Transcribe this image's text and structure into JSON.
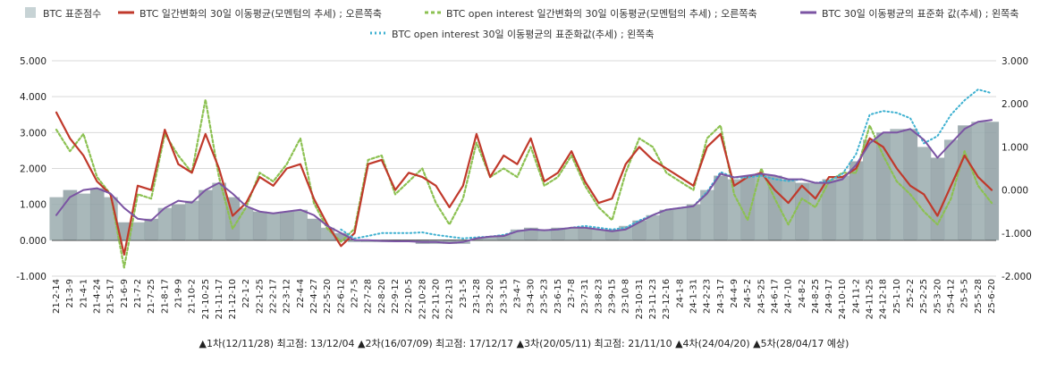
{
  "chart_data": {
    "type": "area+line",
    "legend": [
      {
        "key": "score",
        "label": "BTC 표준점수",
        "color": "#c7d3d5",
        "style": "area"
      },
      {
        "key": "chg30",
        "label": "BTC 일간변화의 30일 이동평균(모멘텀의 추세) ; 오른쪽축",
        "color": "#c0392b",
        "style": "line"
      },
      {
        "key": "oi_chg30",
        "label": "BTC open interest 일간변화의 30일 이동평균(모멘텀의 추세) ; 오른쪽축",
        "color": "#8cc152",
        "style": "dash"
      },
      {
        "key": "std30",
        "label": "BTC 30일 이동평균의 표준화 값(추세) ; 왼쪽축",
        "color": "#7b54a3",
        "style": "line"
      },
      {
        "key": "oi_std30",
        "label": "BTC open interest 30일 이동평균의 표준화값(추세) ; 왼쪽축",
        "color": "#3fb1d1",
        "style": "dot"
      }
    ],
    "y_left": {
      "min": -1,
      "max": 5,
      "ticks": [
        "-1.000",
        "0.000",
        "1.000",
        "2.000",
        "3.000",
        "4.000",
        "5.000"
      ]
    },
    "y_right": {
      "min": -2,
      "max": 3,
      "ticks": [
        "-2.000",
        "-1.000",
        "0.000",
        "1.000",
        "2.000",
        "3.000"
      ]
    },
    "x_labels": [
      "21-2-14",
      "21-3-9",
      "21-4-1",
      "21-4-24",
      "21-5-17",
      "21-6-9",
      "21-7-2",
      "21-7-25",
      "21-8-17",
      "21-9-9",
      "21-10-2",
      "21-10-25",
      "21-11-17",
      "21-12-10",
      "22-1-2",
      "22-1-25",
      "22-2-17",
      "22-3-12",
      "22-4-4",
      "22-4-27",
      "22-5-20",
      "22-6-12",
      "22-7-5",
      "22-7-28",
      "22-8-20",
      "22-9-12",
      "22-10-5",
      "22-10-28",
      "22-11-20",
      "22-12-13",
      "23-1-5",
      "23-1-28",
      "23-2-20",
      "23-3-15",
      "23-4-7",
      "23-4-30",
      "23-5-23",
      "23-6-15",
      "23-7-8",
      "23-7-31",
      "23-8-23",
      "23-9-15",
      "23-10-8",
      "23-10-31",
      "23-11-23",
      "23-12-16",
      "24-1-8",
      "24-1-31",
      "24-2-23",
      "24-3-17",
      "24-4-9",
      "24-5-2",
      "24-5-25",
      "24-6-17",
      "24-7-10",
      "24-8-2",
      "24-8-25",
      "24-9-17",
      "24-10-10",
      "24-11-2",
      "24-11-25",
      "24-12-18",
      "25-1-10",
      "25-2-2",
      "25-2-25",
      "25-3-20",
      "25-4-12",
      "25-5-5",
      "25-5-28",
      "25-6-20"
    ],
    "series": [
      {
        "name": "BTC 표준점수",
        "axis": "left",
        "values": [
          1.2,
          1.4,
          1.3,
          1.45,
          1.2,
          0.5,
          0.5,
          0.6,
          0.9,
          1.0,
          1.1,
          1.4,
          1.6,
          1.2,
          0.9,
          0.8,
          0.75,
          0.8,
          0.85,
          0.6,
          0.35,
          0.2,
          -0.05,
          -0.05,
          -0.05,
          -0.05,
          -0.05,
          -0.1,
          -0.1,
          -0.1,
          -0.1,
          0.05,
          0.1,
          0.15,
          0.3,
          0.35,
          0.3,
          0.35,
          0.35,
          0.35,
          0.3,
          0.3,
          0.4,
          0.55,
          0.7,
          0.85,
          0.9,
          1.0,
          1.4,
          1.8,
          1.7,
          1.8,
          1.85,
          1.8,
          1.7,
          1.6,
          1.6,
          1.7,
          1.8,
          2.2,
          2.8,
          3.0,
          3.1,
          3.1,
          2.6,
          2.3,
          2.8,
          3.2,
          3.3,
          3.3
        ]
      },
      {
        "name": "BTC 일간변화의 30일 이동평균(모멘텀의 추세) ; 오른쪽축",
        "axis": "right",
        "values": [
          1.8,
          1.2,
          0.8,
          0.2,
          -0.1,
          -1.5,
          0.1,
          0.0,
          1.4,
          0.6,
          0.4,
          1.3,
          0.5,
          -0.6,
          -0.3,
          0.3,
          0.1,
          0.5,
          0.6,
          -0.2,
          -0.8,
          -1.3,
          -1.0,
          0.6,
          0.7,
          0.0,
          0.4,
          0.3,
          0.1,
          -0.4,
          0.1,
          1.3,
          0.3,
          0.8,
          0.6,
          1.2,
          0.2,
          0.4,
          0.9,
          0.2,
          -0.3,
          -0.2,
          0.6,
          1.0,
          0.7,
          0.5,
          0.3,
          0.1,
          1.0,
          1.3,
          0.1,
          0.3,
          0.4,
          0.0,
          -0.3,
          0.1,
          -0.2,
          0.3,
          0.3,
          0.5,
          1.2,
          1.0,
          0.5,
          0.1,
          -0.1,
          -0.6,
          0.1,
          0.8,
          0.3,
          0.0
        ]
      },
      {
        "name": "BTC open interest 일간변화의 30일 이동평균(모멘텀의 추세) ; 오른쪽축",
        "axis": "right",
        "values": [
          1.4,
          0.9,
          1.3,
          0.3,
          -0.1,
          -1.8,
          -0.1,
          -0.2,
          1.3,
          0.8,
          0.4,
          2.1,
          0.3,
          -0.9,
          -0.4,
          0.4,
          0.2,
          0.6,
          1.2,
          -0.3,
          -0.9,
          -1.2,
          -0.9,
          0.7,
          0.8,
          -0.1,
          0.2,
          0.5,
          -0.3,
          -0.8,
          -0.2,
          1.1,
          0.3,
          0.5,
          0.3,
          1.0,
          0.1,
          0.3,
          0.8,
          0.1,
          -0.4,
          -0.7,
          0.4,
          1.2,
          1.0,
          0.4,
          0.2,
          0.0,
          1.2,
          1.5,
          -0.1,
          -0.7,
          0.5,
          -0.2,
          -0.8,
          -0.2,
          -0.4,
          0.2,
          0.4,
          0.4,
          1.5,
          0.8,
          0.2,
          -0.1,
          -0.5,
          -0.8,
          -0.2,
          0.9,
          0.1,
          -0.3
        ]
      },
      {
        "name": "BTC 30일 이동평균의 표준화 값(추세) ; 왼쪽축",
        "axis": "left",
        "values": [
          0.7,
          1.2,
          1.4,
          1.45,
          1.3,
          0.9,
          0.6,
          0.55,
          0.9,
          1.1,
          1.05,
          1.4,
          1.6,
          1.3,
          0.95,
          0.8,
          0.75,
          0.8,
          0.85,
          0.7,
          0.4,
          0.2,
          0.0,
          0.0,
          -0.02,
          -0.03,
          -0.03,
          -0.05,
          -0.05,
          -0.08,
          -0.05,
          0.05,
          0.1,
          0.12,
          0.25,
          0.3,
          0.28,
          0.3,
          0.35,
          0.35,
          0.3,
          0.25,
          0.3,
          0.5,
          0.7,
          0.85,
          0.9,
          0.95,
          1.3,
          1.85,
          1.75,
          1.8,
          1.85,
          1.8,
          1.7,
          1.7,
          1.6,
          1.6,
          1.7,
          2.1,
          2.7,
          3.0,
          3.0,
          3.1,
          2.8,
          2.3,
          2.7,
          3.1,
          3.3,
          3.35
        ]
      },
      {
        "name": "BTC open interest 30일 이동평균의 표준화값(추세) ; 왼쪽축",
        "axis": "left",
        "values": [
          null,
          null,
          null,
          null,
          null,
          null,
          null,
          null,
          null,
          null,
          null,
          null,
          null,
          null,
          null,
          null,
          null,
          null,
          null,
          null,
          null,
          0.3,
          0.05,
          0.12,
          0.2,
          0.2,
          0.2,
          0.22,
          0.15,
          0.1,
          0.05,
          0.08,
          0.1,
          0.15,
          0.25,
          0.3,
          0.28,
          0.3,
          0.35,
          0.4,
          0.35,
          0.3,
          0.35,
          0.55,
          0.7,
          0.85,
          0.9,
          0.95,
          1.35,
          1.9,
          1.75,
          1.75,
          1.8,
          1.7,
          1.65,
          1.7,
          1.6,
          1.65,
          1.85,
          2.4,
          3.5,
          3.6,
          3.55,
          3.4,
          2.7,
          2.9,
          3.5,
          3.9,
          4.2,
          4.1
        ]
      }
    ],
    "footnote": "▲1차(12/11/28) 최고점: 13/12/04 ▲2차(16/07/09) 최고점: 17/12/17 ▲3차(20/05/11) 최고점: 21/11/10 ▲4차(24/04/20) ▲5차(28/04/17 예상)"
  }
}
